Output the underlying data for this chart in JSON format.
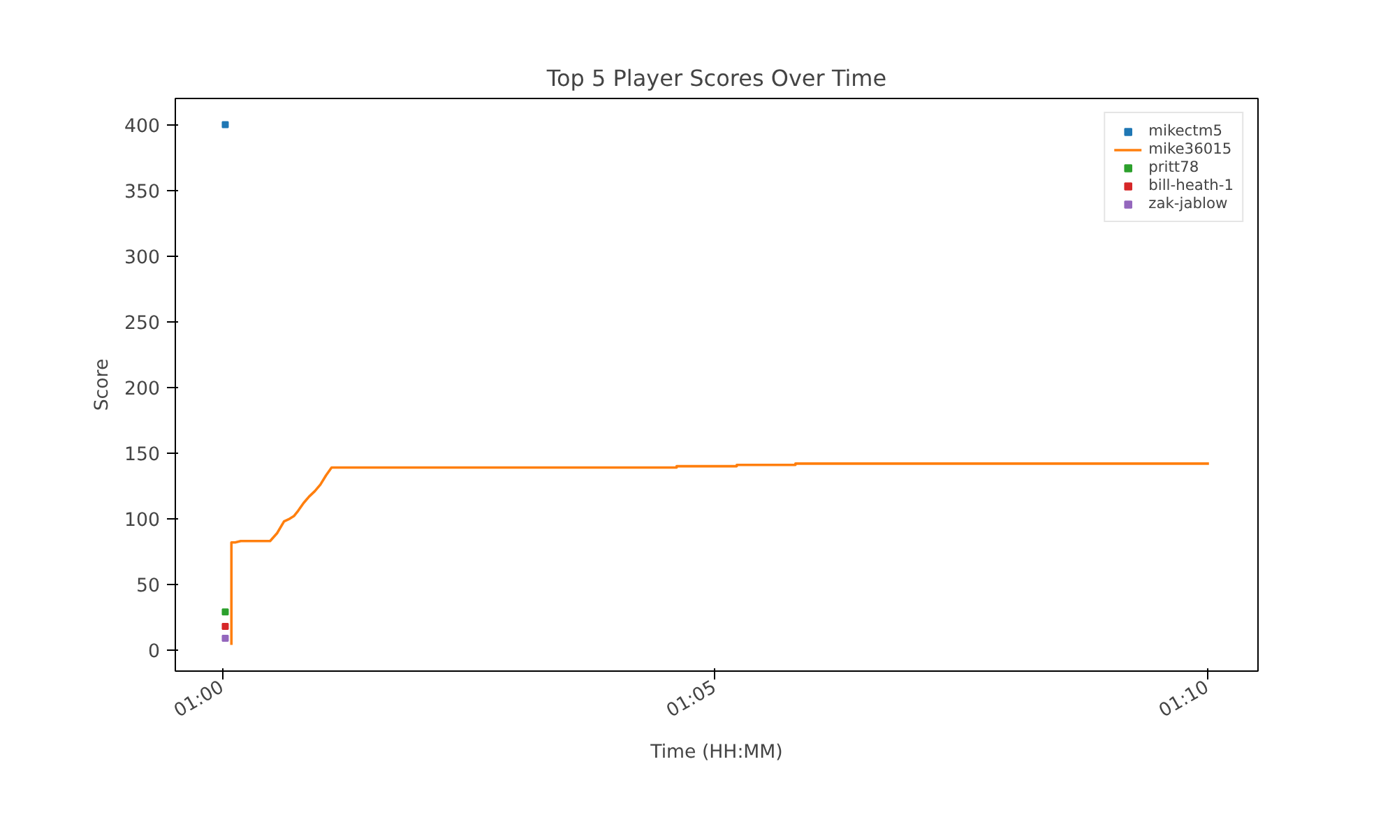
{
  "chart_data": {
    "type": "line",
    "title": "Top 5 Player Scores Over Time",
    "xlabel": "Time (HH:MM)",
    "ylabel": "Score",
    "xlim": [
      0.992,
      1.1752
    ],
    "ylim": [
      -16,
      420
    ],
    "xticks": [
      {
        "value": 1.0,
        "label": "01:00"
      },
      {
        "value": 1.08333,
        "label": "01:05"
      },
      {
        "value": 1.16667,
        "label": "01:10"
      }
    ],
    "yticks": [
      0,
      50,
      100,
      150,
      200,
      250,
      300,
      350,
      400
    ],
    "grid": false,
    "legend": "top right",
    "line_style": "solid",
    "marker": "none",
    "series": [
      {
        "name": "mikectm5",
        "color": "#1f77b4",
        "type": "scatter",
        "marker": "square",
        "x": [
          1.00045
        ],
        "values": [
          400
        ]
      },
      {
        "name": "mike36015",
        "color": "#ff7f0e",
        "x": [
          1.00149,
          1.00149,
          1.00213,
          1.00307,
          1.00804,
          1.00922,
          1.0104,
          1.01135,
          1.01206,
          1.01277,
          1.01371,
          1.01466,
          1.0156,
          1.01655,
          1.0175,
          1.01844,
          1.07683,
          1.07683,
          1.087,
          1.087,
          1.09693,
          1.09693,
          1.1669
        ],
        "values": [
          4,
          82,
          82,
          83,
          83,
          89,
          98,
          100,
          102,
          106,
          112,
          117,
          121,
          126,
          133,
          139,
          139,
          140,
          140,
          141,
          141,
          142,
          142
        ]
      },
      {
        "name": "pritt78",
        "color": "#2ca02c",
        "type": "scatter",
        "marker": "square",
        "x": [
          1.00045
        ],
        "values": [
          29
        ]
      },
      {
        "name": "bill-heath-1",
        "color": "#d62728",
        "type": "scatter",
        "marker": "square",
        "x": [
          1.00045
        ],
        "values": [
          18
        ]
      },
      {
        "name": "zak-jablow",
        "color": "#9467bd",
        "type": "scatter",
        "marker": "square",
        "x": [
          1.00045
        ],
        "values": [
          9
        ]
      }
    ]
  }
}
